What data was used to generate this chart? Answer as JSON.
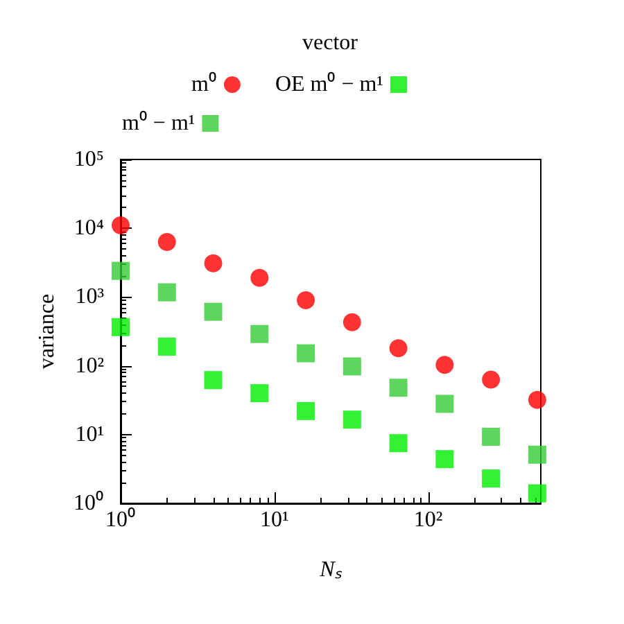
{
  "chart_data": {
    "type": "scatter",
    "legend_title": "vector",
    "xlabel": "Nₛ",
    "ylabel": "variance",
    "log": "xy",
    "legend": "top",
    "grid": false,
    "x": [
      1,
      2,
      4,
      8,
      16,
      32,
      64,
      128,
      256,
      512
    ],
    "xlim": [
      1,
      540
    ],
    "xticks": [
      {
        "value": 1,
        "label": "10⁰"
      },
      {
        "value": 10,
        "label": "10¹"
      },
      {
        "value": 100,
        "label": "10²"
      }
    ],
    "ylim": [
      1,
      100000
    ],
    "yticks": [
      {
        "value": 1,
        "label": "10⁰"
      },
      {
        "value": 10,
        "label": "10¹"
      },
      {
        "value": 100,
        "label": "10²"
      },
      {
        "value": 1000,
        "label": "10³"
      },
      {
        "value": 10000,
        "label": "10⁴"
      },
      {
        "value": 100000,
        "label": "10⁵"
      }
    ],
    "series": [
      {
        "name": "m⁰",
        "color": "#ff0000",
        "marker": "circle",
        "values": [
          11000,
          6300,
          3100,
          1900,
          900,
          430,
          180,
          103,
          63,
          32
        ]
      },
      {
        "name": "m⁰ − m¹",
        "color": "#33cc33",
        "marker": "square",
        "values": [
          2400,
          1170,
          610,
          290,
          152,
          98,
          48,
          28,
          9.3,
          5.1
        ]
      },
      {
        "name": "OE m⁰ − m¹",
        "color": "#00ee00",
        "marker": "square",
        "values": [
          365,
          190,
          62,
          40,
          22,
          16.5,
          7.5,
          4.4,
          2.3,
          1.4
        ]
      }
    ]
  }
}
